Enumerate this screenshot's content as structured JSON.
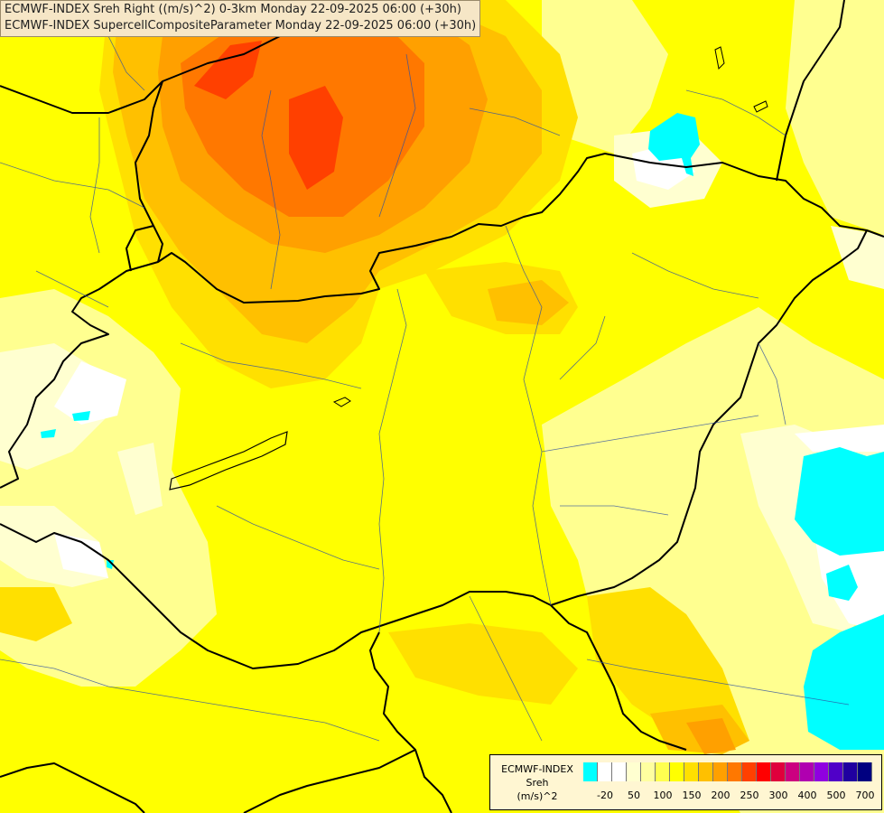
{
  "header": {
    "line1": "ECMWF-INDEX Sreh Right ((m/s)^2) 0-3km Monday 22-09-2025 06:00 (+30h)",
    "line2": "ECMWF-INDEX SupercellCompositeParameter Monday 22-09-2025 06:00 (+30h)"
  },
  "legend": {
    "title_line1": "ECMWF-INDEX",
    "title_line2": "Sreh",
    "title_line3": "(m/s)^2",
    "colors": [
      "#00ffff",
      "#ffffff",
      "#ffffff",
      "#ffffd0",
      "#ffffa0",
      "#ffff50",
      "#ffff00",
      "#ffe000",
      "#ffc000",
      "#ffa000",
      "#ff7800",
      "#ff4000",
      "#ff0000",
      "#e0003c",
      "#cc0080",
      "#b000b0",
      "#9000e0",
      "#5000c8",
      "#2000a0",
      "#000080"
    ],
    "ticks": [
      "-20",
      "50",
      "100",
      "150",
      "200",
      "250",
      "300",
      "400",
      "500",
      "700"
    ]
  }
}
